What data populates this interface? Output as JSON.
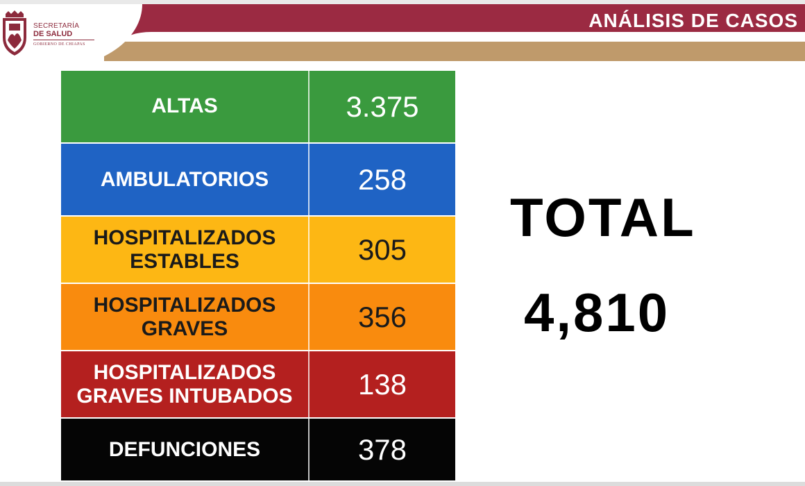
{
  "header": {
    "title": "ANÁLISIS DE CASOS",
    "logo": {
      "line1": "SECRETARÍA",
      "line2": "DE SALUD",
      "line3": "GOBIERNO DE CHIAPAS",
      "icon": "chiapas-shield-icon"
    },
    "colors": {
      "maroon": "#9b2a42",
      "tan": "#bf9a6b"
    }
  },
  "table": {
    "rows": [
      {
        "label": "ALTAS",
        "value": "3.375",
        "bg": "#3a9a3e",
        "text": "#ffffff"
      },
      {
        "label": "AMBULATORIOS",
        "value": "258",
        "bg": "#1f63c4",
        "text": "#ffffff"
      },
      {
        "label": "HOSPITALIZADOS ESTABLES",
        "value": "305",
        "bg": "#fdb714",
        "text": "#1a1a1a"
      },
      {
        "label": "HOSPITALIZADOS GRAVES",
        "value": "356",
        "bg": "#f98b0e",
        "text": "#1a1a1a"
      },
      {
        "label": "HOSPITALIZADOS GRAVES INTUBADOS",
        "value": "138",
        "bg": "#b4201f",
        "text": "#ffffff"
      },
      {
        "label": "DEFUNCIONES",
        "value": "378",
        "bg": "#050505",
        "text": "#ffffff"
      }
    ]
  },
  "total": {
    "label": "TOTAL",
    "value": "4,810"
  }
}
